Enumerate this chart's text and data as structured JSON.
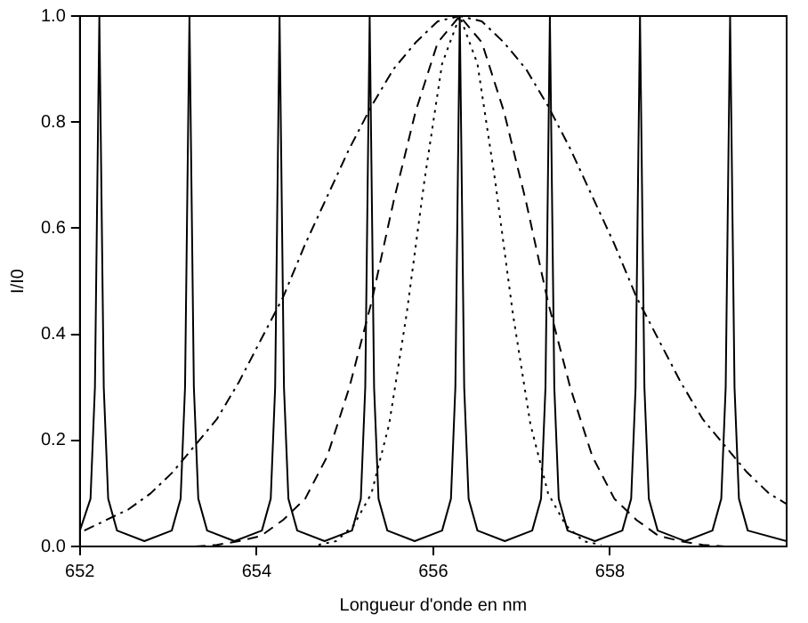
{
  "chart_data": {
    "type": "line",
    "xlabel": "Longueur d'onde en nm",
    "ylabel": "I/I0",
    "xlim": [
      652,
      660
    ],
    "xticks": [
      652,
      654,
      656,
      658
    ],
    "ylim": [
      0,
      1
    ],
    "yticks": [
      {
        "value": 0,
        "label": "0.0"
      },
      {
        "value": 0.2,
        "label": "0.2"
      },
      {
        "value": 0.4,
        "label": "0.4"
      },
      {
        "value": 0.6,
        "label": "0.6"
      },
      {
        "value": 0.8,
        "label": "0.8"
      },
      {
        "value": 1,
        "label": "1.0"
      }
    ],
    "grid": false,
    "legend": false,
    "marker": "none",
    "series": [
      {
        "color": "#000000",
        "line_style": "solid",
        "x": [
          652,
          652.12,
          652.17,
          652.22,
          652.27,
          652.32,
          652.42,
          652.73,
          653.04,
          653.14,
          653.19,
          653.24,
          653.29,
          653.34,
          653.44,
          653.75,
          654.06,
          654.16,
          654.21,
          654.26,
          654.31,
          654.36,
          654.46,
          654.77,
          655.08,
          655.18,
          655.23,
          655.28,
          655.33,
          655.38,
          655.48,
          655.79,
          656.1,
          656.2,
          656.25,
          656.3,
          656.35,
          656.4,
          656.5,
          656.81,
          657.12,
          657.22,
          657.27,
          657.32,
          657.37,
          657.42,
          657.52,
          657.83,
          658.14,
          658.24,
          658.29,
          658.34,
          658.39,
          658.44,
          658.54,
          658.85,
          659.16,
          659.26,
          659.31,
          659.36,
          659.41,
          659.46,
          659.56,
          660
        ],
        "values": [
          0.03,
          0.09,
          0.3,
          1,
          0.3,
          0.09,
          0.03,
          0.01,
          0.03,
          0.09,
          0.3,
          1,
          0.3,
          0.09,
          0.03,
          0.01,
          0.03,
          0.09,
          0.3,
          1,
          0.3,
          0.09,
          0.03,
          0.01,
          0.03,
          0.09,
          0.3,
          1,
          0.3,
          0.09,
          0.03,
          0.01,
          0.03,
          0.09,
          0.3,
          1,
          0.3,
          0.09,
          0.03,
          0.01,
          0.03,
          0.09,
          0.3,
          1,
          0.3,
          0.09,
          0.03,
          0.01,
          0.03,
          0.09,
          0.3,
          1,
          0.3,
          0.09,
          0.03,
          0.01,
          0.03,
          0.09,
          0.3,
          1,
          0.3,
          0.09,
          0.03,
          0.01
        ]
      },
      {
        "color": "#000000",
        "line_style": "dashdot",
        "x": [
          652.05,
          652.3,
          652.55,
          652.8,
          653.05,
          653.3,
          653.55,
          653.8,
          654.05,
          654.3,
          654.55,
          654.8,
          655.05,
          655.3,
          655.55,
          655.8,
          656.05,
          656.3,
          656.55,
          656.8,
          657.05,
          657.3,
          657.55,
          657.8,
          658.05,
          658.3,
          658.55,
          658.8,
          659.05,
          659.3,
          659.55,
          659.8,
          660
        ],
        "values": [
          0.03,
          0.05,
          0.07,
          0.1,
          0.14,
          0.19,
          0.24,
          0.31,
          0.39,
          0.47,
          0.57,
          0.66,
          0.75,
          0.83,
          0.9,
          0.95,
          0.99,
          1,
          0.99,
          0.95,
          0.9,
          0.83,
          0.75,
          0.66,
          0.57,
          0.47,
          0.39,
          0.31,
          0.24,
          0.19,
          0.14,
          0.1,
          0.08
        ]
      },
      {
        "color": "#000000",
        "line_style": "dashed",
        "x": [
          653.3,
          653.55,
          653.8,
          654.05,
          654.3,
          654.55,
          654.8,
          655.05,
          655.3,
          655.55,
          655.8,
          656.05,
          656.3,
          656.55,
          656.8,
          657.05,
          657.3,
          657.55,
          657.8,
          658.05,
          658.3,
          658.55,
          658.8,
          659.05,
          659.3
        ],
        "values": [
          0,
          0.003,
          0.01,
          0.02,
          0.05,
          0.09,
          0.17,
          0.3,
          0.46,
          0.65,
          0.82,
          0.95,
          1,
          0.95,
          0.82,
          0.65,
          0.46,
          0.3,
          0.17,
          0.09,
          0.05,
          0.02,
          0.01,
          0.003,
          0
        ]
      },
      {
        "color": "#000000",
        "line_style": "dotted",
        "x": [
          654.7,
          654.9,
          655.1,
          655.3,
          655.5,
          655.7,
          655.9,
          656.1,
          656.3,
          656.5,
          656.7,
          656.9,
          657.1,
          657.3,
          657.5,
          657.7,
          657.9
        ],
        "values": [
          0.003,
          0.01,
          0.04,
          0.1,
          0.23,
          0.44,
          0.69,
          0.91,
          1,
          0.91,
          0.69,
          0.44,
          0.23,
          0.1,
          0.04,
          0.01,
          0.003
        ]
      }
    ]
  }
}
